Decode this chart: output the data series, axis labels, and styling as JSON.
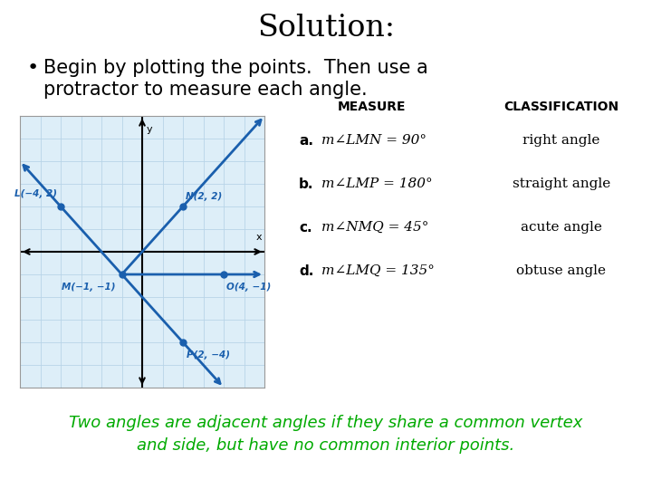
{
  "title": "Solution:",
  "title_fontsize": 24,
  "title_fontweight": "normal",
  "bullet_text_line1": "Begin by plotting the points.  Then use a",
  "bullet_text_line2": "protractor to measure each angle.",
  "bullet_fontsize": 15,
  "footer_text": "Two angles are adjacent angles if they share a common vertex\nand side, but have no common interior points.",
  "footer_color": "#00aa00",
  "footer_fontsize": 13,
  "background_color": "#ffffff",
  "points": {
    "L": [
      -4,
      2
    ],
    "N": [
      2,
      2
    ],
    "M": [
      -1,
      -1
    ],
    "O": [
      4,
      -1
    ],
    "P": [
      2,
      -4
    ]
  },
  "ray_color": "#1a5fad",
  "grid_color": "#b8d4e8",
  "graph_bg": "#ddeef8",
  "axis_color": "#000000",
  "table_headers": [
    "MEASURE",
    "CLASSIFICATION"
  ],
  "table_rows": [
    [
      "a.",
      "m∠LMN = 90°",
      "right angle"
    ],
    [
      "b.",
      "m∠LMP = 180°",
      "straight angle"
    ],
    [
      "c.",
      "m∠NMQ = 45°",
      "acute angle"
    ],
    [
      "d.",
      "m∠LMQ = 135°",
      "obtuse angle"
    ]
  ],
  "graph_xlim": [
    -6,
    6
  ],
  "graph_ylim": [
    -6,
    6
  ],
  "label_texts": {
    "L": "L(−4, 2)",
    "N": "N(2, 2)",
    "M": "M(−1, −1)",
    "O": "O(4, −1)",
    "P": "P(2, −4)"
  }
}
